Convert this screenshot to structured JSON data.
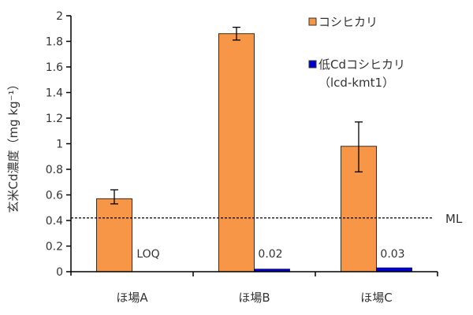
{
  "chart_data": {
    "type": "bar",
    "title": "",
    "xlabel": "",
    "ylabel": "玄米Cd濃度（mg kg⁻¹）",
    "ylim": [
      0,
      2
    ],
    "yticks": [
      0,
      0.2,
      0.4,
      0.6,
      0.8,
      1,
      1.2,
      1.4,
      1.6,
      1.8,
      2
    ],
    "ytick_labels": [
      "0",
      "0.2",
      "0.4",
      "0.6",
      "0.8",
      "1",
      "1.2",
      "1.4",
      "1.6",
      "1.8",
      "2"
    ],
    "categories": [
      "ほ場A",
      "ほ場B",
      "ほ場C"
    ],
    "series": [
      {
        "name": "コシヒカリ",
        "color": "#F79646",
        "values": [
          0.57,
          1.86,
          0.98
        ],
        "error_low": [
          0.53,
          1.81,
          0.78
        ],
        "error_high": [
          0.64,
          1.91,
          1.17
        ]
      },
      {
        "name": "低Cdコシヒカリ（lcd-kmt1）",
        "color": "#0000CC",
        "values": [
          0,
          0.02,
          0.03
        ],
        "data_labels": [
          "LOQ",
          "0.02",
          "0.03"
        ]
      }
    ],
    "reference_line": {
      "label": "ML",
      "value": 0.42,
      "style": "dashed"
    },
    "legend": {
      "position": "top-right",
      "entries": [
        "コシヒカリ",
        "低Cdコシヒカリ",
        "（lcd-kmt1）"
      ]
    },
    "grid": false
  }
}
